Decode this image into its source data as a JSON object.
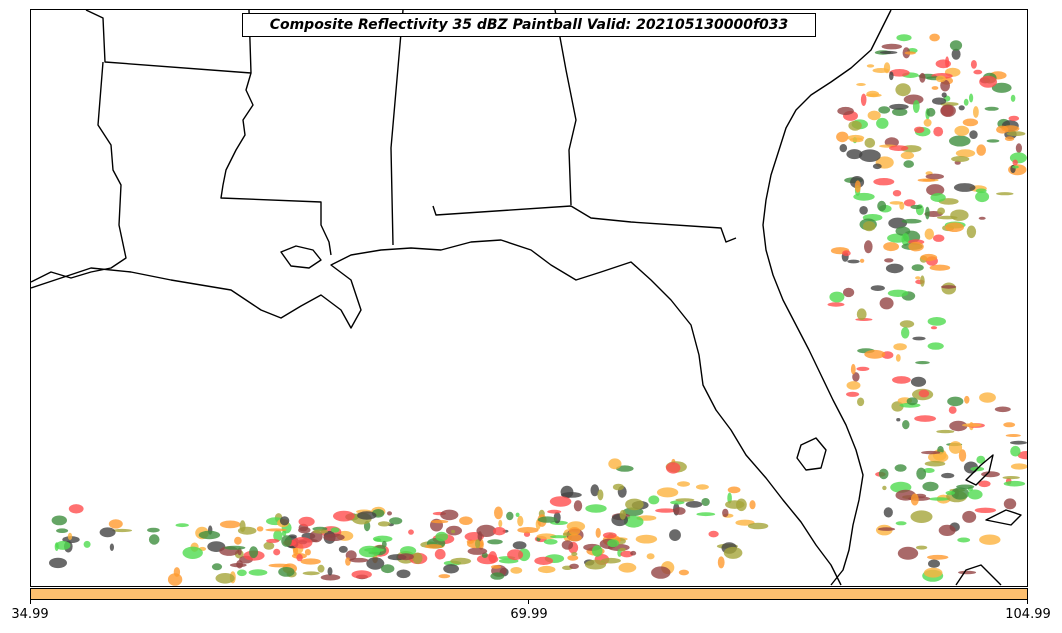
{
  "title": "Composite Reflectivity 35 dBZ Paintball Valid: 202105130000f033",
  "colorbar": {
    "color": "#fdbf6f",
    "ticks": [
      "34.99",
      "69.99",
      "104.99"
    ]
  },
  "palette": [
    "#ff4d4d",
    "#ff9a2e",
    "#fdb33f",
    "#4fdb4f",
    "#3e8e3e",
    "#a5a53a",
    "#944444",
    "#444444"
  ],
  "map": {
    "coastline_color": "#000000",
    "background": "#ffffff"
  }
}
